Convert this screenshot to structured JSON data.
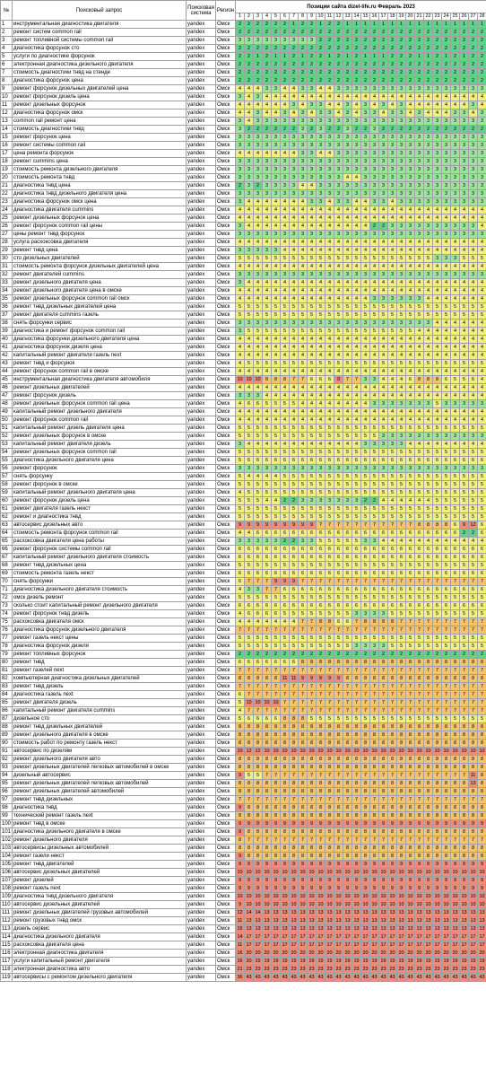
{
  "header": {
    "num": "№",
    "query": "Поисковый запрос",
    "engine": "Поисковая система",
    "region": "Регион",
    "title": "Позиции сайта dizel-life.ru Февраль 2023",
    "days": [
      "1",
      "2",
      "3",
      "4",
      "5",
      "6",
      "7",
      "8",
      "9",
      "10",
      "11",
      "12",
      "13",
      "14",
      "15",
      "16",
      "17",
      "18",
      "19",
      "20",
      "21",
      "22",
      "23",
      "24",
      "25",
      "26",
      "27",
      "28"
    ]
  },
  "engine": "yandex",
  "region": "Омск",
  "colors": {
    "green": "#5fd38a",
    "light_green": "#9be59b",
    "yellow": "#f2f07d",
    "orange": "#f4c36a",
    "red": "#f08a7a"
  },
  "rows": [
    {
      "q": "инструментальная диагностика двигателя",
      "p": "2 2 2 2 2 2 1 2 2 1 2 2 1 1 1 1 1 1 1 1 1 1 1 1 1 1 1 1"
    },
    {
      "q": "ремонт систем common rail",
      "p": "2 2 2 2 2 2 2 2 2 2 2 2 2 2 2 2 2 2 2 2 2 2 2 2 2 2 2 2"
    },
    {
      "q": "ремонт топливной системы common rail",
      "p": "3 3 3 3 3 3 3 3 3 2 2 2 2 2 2 2 2 2 2 2 2 2 2 2 2 2 2 2"
    },
    {
      "q": "диагностика форсунок сто",
      "p": "2 2 2 2 2 2 2 2 2 2 2 2 2 2 2 2 2 2 2 2 2 2 2 2 2 2 2 2"
    },
    {
      "q": "услуги по диагностике форсунок",
      "p": "2 2 1 2 1 1 2 1 2 2 1 2 1 2 1 1 1 2 2 2 1 1 2 1 2 1 2 2"
    },
    {
      "q": "электронная диагностика дизельного двигателя",
      "p": "2 2 2 2 2 2 2 2 2 2 2 2 2 2 2 2 2 2 2 2 2 2 2 2 2 2 2 2"
    },
    {
      "q": "стоимость диагностики тнвд на стенде",
      "p": "2 2 2 2 2 2 2 2 2 2 2 2 2 2 2 2 2 2 2 2 2 2 2 2 2 2 2 2"
    },
    {
      "q": "диагностика форсунок цена",
      "p": "2 2 2 2 2 2 2 2 2 2 2 2 2 2 2 2 2 2 2 2 2 2 2 2 2 2 2 2"
    },
    {
      "q": "ремонт форсунок дизельных двигателей цена",
      "p": "4 4 4 3 3 4 4 3 3 4 4 3 3 3 3 3 3 3 3 3 3 3 3 3 3 3 3 3"
    },
    {
      "q": "ремонт форсунок дизель цена",
      "p": "3 4 3 4 4 4 4 4 4 4 4 4 4 4 4 4 4 4 4 4 4 4 4 4 4 4 4 4"
    },
    {
      "q": "ремонт дизельных форсунок",
      "p": "4 4 4 4 4 4 3 4 3 3 4 4 3 4 3 4 3 4 3 4 4 4 4 4 4 4 3 4"
    },
    {
      "q": "диагностика форсунок омск",
      "p": "4 4 3 4 4 3 4 3 4 3 3 4 3 4 3 3 4 3 3 4 3 4 4 4 3 3 4 3"
    },
    {
      "q": "common rail ремонт цена",
      "p": "3 4 3 3 3 3 3 3 3 3 3 3 3 3 3 3 3 3 3 3 3 3 3 3 3 3 3 3"
    },
    {
      "q": "стоимость диагностики тнвд",
      "p": "3 2 2 2 2 2 2 3 2 3 2 2 3 2 2 3 2 2 2 2 2 2 2 2 2 2 2 2"
    },
    {
      "q": "ремонт форсунок цена",
      "p": "3 3 3 3 3 3 3 3 3 3 3 3 3 3 3 3 3 3 3 3 3 3 3 3 3 3 3 3"
    },
    {
      "q": "ремонт системы common rail",
      "p": "3 3 3 3 3 3 3 3 3 3 3 3 3 3 3 3 3 3 3 3 3 3 3 3 3 3 3 3"
    },
    {
      "q": "цена ремонта форсунок",
      "p": "4 4 4 4 4 4 4 3 3 4 4 3 3 3 3 3 3 3 3 3 3 3 3 3 3 3 3 3"
    },
    {
      "q": "ремонт cummins цена",
      "p": "3 3 3 3 3 3 3 3 3 3 3 3 3 3 3 3 3 3 3 3 3 3 3 3 3 3 3 3"
    },
    {
      "q": "стоимость ремонта дизельного двигателя",
      "p": "3 3 3 3 3 3 3 3 3 3 3 3 3 3 3 3 3 3 3 3 3 3 3 3 3 3 3 3"
    },
    {
      "q": "стоимость ремонта тнвд",
      "p": "3 3 3 3 3 3 3 3 3 3 3 3 4 4 3 3 3 3 3 3 3 3 3 3 3 3 3 3"
    },
    {
      "q": "диагностика тнвд цена",
      "p": "2 3 2 3 3 3 3 4 4 3 3 3 3 3 3 3 3 3 3 3 3 3 3 3 3 3 3 3"
    },
    {
      "q": "диагностика тнвд дизельного двигателя цена",
      "p": "3 3 3 3 3 3 3 3 3 3 3 3 3 3 3 3 3 3 3 3 3 3 3 3 3 3 3 3"
    },
    {
      "q": "диагностика форсунок омск цена",
      "p": "3 4 4 4 4 4 4 4 3 3 4 3 3 4 4 3 3 4 3 3 3 3 3 3 3 3 3 3"
    },
    {
      "q": "диагностика двигателя cummins",
      "p": "4 4 4 4 4 4 4 4 4 4 4 4 4 4 4 4 4 4 4 4 4 4 4 4 4 4 4 4"
    },
    {
      "q": "ремонт дизельных форсунок цена",
      "p": "4 4 4 4 4 4 4 4 4 4 4 4 4 4 4 4 4 4 4 4 4 4 4 4 4 4 4 4"
    },
    {
      "q": "ремонт форсунок common rail цены",
      "p": "3 4 4 4 4 4 4 4 4 4 4 4 4 4 4 2 2 3 3 3 3 3 3 3 3 3 3 4"
    },
    {
      "q": "цены ремонт тнвд форсунок",
      "p": "3 3 3 3 3 3 3 3 3 3 3 3 3 3 3 3 3 3 3 3 3 3 3 3 3 3 3 3"
    },
    {
      "q": "услуга расхоксовка двигателя",
      "p": "4 4 4 4 4 4 4 4 4 4 4 4 4 4 4 4 4 4 4 4 4 4 4 4 4 4 4 4"
    },
    {
      "q": "ремонт тнвд цена",
      "p": "3 3 3 3 3 4 4 4 4 4 4 4 4 4 4 4 4 4 4 4 4 4 4 4 4 4 4 4"
    },
    {
      "q": "сто дизельных двигателей",
      "p": "5 5 5 5 5 5 5 5 5 5 5 5 5 5 5 5 5 5 5 5 5 5 3 3 3 5 5 5"
    },
    {
      "q": "стоимость ремонта форсунок дизельных двигателей цена",
      "p": "4 4 4 4 4 4 4 4 4 4 4 4 4 4 4 4 4 4 4 4 4 4 4 4 4 4 4 4"
    },
    {
      "q": "ремонт двигателей cummins",
      "p": "3 3 3 3 3 3 3 3 3 3 3 3 3 3 3 3 3 3 3 3 3 3 3 3 3 3 3 3"
    },
    {
      "q": "ремонт дизельного двигателя цена",
      "p": "3 4 4 4 4 4 4 4 4 4 4 4 4 4 4 4 4 4 4 4 4 4 4 4 4 4 4 4"
    },
    {
      "q": "ремонт дизельного двигателя цена в омске",
      "p": "4 4 4 4 4 4 4 4 4 4 4 4 4 4 4 4 4 4 4 4 4 4 4 4 4 4 4 4"
    },
    {
      "q": "ремонт дизельных форсунок common rail омск",
      "p": "4 4 4 4 4 4 4 4 4 4 4 4 4 4 4 3 3 3 3 3 3 4 4 4 4 4 4 4"
    },
    {
      "q": "ремонт тнвд дизельных двигателей цена",
      "p": "5 5 5 5 5 5 5 5 5 5 5 5 5 5 5 5 5 5 5 5 5 5 5 5 5 5 5 5"
    },
    {
      "q": "ремонт двигателя cummins газель",
      "p": "5 5 5 5 5 5 5 5 5 5 5 5 5 5 5 5 5 5 5 5 5 5 5 5 5 5 5 5"
    },
    {
      "q": "снять форсунки сервис",
      "p": "3 3 3 3 3 3 3 3 3 3 3 3 3 3 3 3 3 3 3 3 3 3 4 4 4 4 4 4"
    },
    {
      "q": "диагностика и ремонт форсунок common rail",
      "p": "3 5 5 5 5 5 5 5 5 5 5 5 5 5 5 5 5 5 5 5 4 4 4 4 4 4 4 4"
    },
    {
      "q": "диагностика форсунки дизельного двигателя цена",
      "p": "4 4 4 4 4 4 4 4 4 4 4 4 4 4 4 4 4 4 4 4 4 4 4 4 4 4 4 4"
    },
    {
      "q": "диагностика форсунок дизеля цена",
      "p": "4 4 4 4 4 4 4 4 4 4 4 4 4 4 4 4 4 4 4 4 4 4 4 4 4 4 4 4"
    },
    {
      "q": "капитальный ремонт двигателя газель next",
      "p": "4 4 4 4 4 4 4 4 4 4 4 4 4 4 4 4 4 4 4 4 4 4 4 4 4 4 4 4"
    },
    {
      "q": "ремонт тнвд и форсунок",
      "p": "4 5 5 5 5 5 5 5 5 5 5 5 5 5 5 5 5 5 5 5 5 5 5 5 5 5 5 5"
    },
    {
      "q": "ремонт форсунок common rail в омске",
      "p": "4 4 4 4 4 4 4 4 4 4 4 4 4 4 4 4 4 4 4 4 4 4 4 4 4 4 4 4"
    },
    {
      "q": "инструментальная диагностика двигателя автомобиля",
      "p": "10 10 10 8 8 8 7 7 6 6 6 9 7 7 3 3 4 4 4 6 8 8 8 6 5 5 6 4"
    },
    {
      "q": "ремонт дизельных двигателей",
      "p": "4 4 4 4 4 4 4 4 4 4 4 4 4 4 4 4 4 4 4 4 4 4 4 4 4 4 4 4"
    },
    {
      "q": "ремонт форсунок дизель",
      "p": "3 3 3 4 4 4 4 4 4 4 4 4 4 4 4 4 4 4 4 4 4 4 4 4 4 4 4 4"
    },
    {
      "q": "ремонт дизельных форсунок common rail цена",
      "p": "4 6 6 5 5 5 5 4 4 4 4 4 4 4 4 3 3 3 3 3 3 3 5 3 3 3 3 3"
    },
    {
      "q": "капитальный ремонт дизельного двигателя",
      "p": "4 4 4 4 4 4 4 4 4 4 4 4 4 4 4 4 4 4 4 4 4 4 4 4 4 4 4 4"
    },
    {
      "q": "ремонт форсунок common rail",
      "p": "4 4 4 4 4 4 4 4 4 4 4 4 4 4 4 4 4 4 4 4 4 4 4 4 4 4 4 4"
    },
    {
      "q": "капитальный ремонт дизель двигателя цена",
      "p": "5 5 5 5 5 5 5 5 5 5 5 5 5 5 5 5 5 5 5 5 5 5 5 5 5 5 5 5"
    },
    {
      "q": "ремонт дизельных форсунок в омске",
      "p": "5 5 5 5 5 5 5 5 5 5 5 5 5 5 5 5 3 3 3 3 3 3 3 3 3 3 3 3"
    },
    {
      "q": "капитальный ремонт двигателя дизель",
      "p": "3 4 4 4 4 4 4 4 4 4 4 4 4 4 3 3 3 3 3 4 4 4 4 4 4 4 4 4"
    },
    {
      "q": "ремонт дизельных форсунок common rail",
      "p": "5 5 5 5 5 5 5 5 5 5 5 5 5 5 5 5 5 5 5 5 5 5 5 5 5 5 5 5"
    },
    {
      "q": "диагностика дизельного двигателя цена",
      "p": "5 6 6 6 6 6 6 6 6 6 6 6 6 6 6 6 6 6 6 6 6 6 6 6 6 6 6 6"
    },
    {
      "q": "ремонт форсунок",
      "p": "3 3 3 3 3 3 3 3 3 3 3 3 3 3 3 3 3 3 3 3 3 3 3 3 3 3 3 3"
    },
    {
      "q": "снять форсунку",
      "p": "5 4 4 4 4 5 5 5 5 5 5 5 5 5 5 5 5 5 5 5 5 5 5 5 5 5 5 5"
    },
    {
      "q": "ремонт форсунок в омске",
      "p": "5 5 5 5 5 5 5 5 5 5 5 5 5 5 5 5 5 5 5 5 5 5 5 5 5 5 5 5"
    },
    {
      "q": "капитальный ремонт дизельного двигателя цена",
      "p": "4 5 5 5 5 5 5 5 5 5 5 5 5 5 5 5 5 5 5 5 5 5 5 5 5 5 5 5"
    },
    {
      "q": "ремонт форсунок дизель цена",
      "p": "5 5 5 4 4 2 2 3 3 3 3 3 3 3 2 2 4 4 4 4 4 4 5 5 5 5 5 5"
    },
    {
      "q": "ремонт двигателя газель некст",
      "p": "5 5 5 5 5 5 5 5 5 5 5 5 5 5 5 5 5 5 5 5 5 5 5 5 5 5 5 5"
    },
    {
      "q": "ремонт и диагностика тнвд",
      "p": "5 5 5 5 5 5 5 5 5 5 5 5 5 5 5 5 5 5 5 5 5 5 5 5 5 5 5 5"
    },
    {
      "q": "автосервис дизельных авто",
      "p": "9 9 9 9 9 9 9 9 9 7 7 7 7 7 7 7 7 7 7 7 8 8 8 8 6 9 12 6"
    },
    {
      "q": "стоимость ремонта форсунок common rail",
      "p": "4 4 6 6 6 6 6 6 6 6 6 6 6 6 6 6 6 6 6 6 6 6 6 6 6 2 2 6"
    },
    {
      "q": "расхоксовка двигателя цена работы",
      "p": "3 3 3 3 3 2 2 3 3 5 5 5 5 5 3 3 4 4 4 4 4 4 4 4 4 4 4 4"
    },
    {
      "q": "ремонт форсунок системы common rail",
      "p": "6 6 6 6 6 6 6 6 6 6 6 6 6 6 6 6 6 6 6 6 6 6 6 6 6 6 6 6"
    },
    {
      "q": "капитальный ремонт дизельного двигателя стоимость",
      "p": "6 6 6 6 6 6 6 6 6 6 6 6 6 6 6 6 6 6 6 6 6 6 6 6 6 6 6 6"
    },
    {
      "q": "ремонт тнвд дизельных цена",
      "p": "5 5 5 5 5 5 5 5 5 5 5 5 5 5 5 5 5 5 5 5 5 5 5 5 5 5 5 5"
    },
    {
      "q": "стоимость ремонта газель некст",
      "p": "6 6 6 6 6 6 6 6 6 6 6 6 6 6 6 6 6 6 6 6 6 6 6 6 6 6 6 6"
    },
    {
      "q": "снять форсунки",
      "p": "6 7 7 7 9 9 9 7 7 7 7 7 7 7 7 7 7 7 7 7 7 7 7 7 7 7 7 7"
    },
    {
      "q": "диагностика дизельного двигателя стоимость",
      "p": "4 3 3 7 7 6 6 6 6 6 6 6 6 6 6 6 6 6 6 6 6 6 6 6 6 6 6 6"
    },
    {
      "q": "омск дизель ремонт",
      "p": "5 5 5 5 5 5 5 5 5 5 5 5 5 5 5 5 5 5 5 5 5 5 5 5 5 5 5 5"
    },
    {
      "q": "сколько стоит капитальный ремонт дизельного двигателя",
      "p": "6 6 6 6 6 6 6 6 6 6 6 6 6 6 6 6 6 6 6 6 6 6 6 6 6 6 6 6"
    },
    {
      "q": "ремонт форсунок тнвд дизель",
      "p": "4 6 6 6 6 5 5 5 5 5 5 5 5 3 3 3 3 5 5 5 5 5 5 5 5 5 5 5"
    },
    {
      "q": "расхоксовка двигателя омск",
      "p": "4 4 4 4 4 4 4 7 7 8 8 6 6 7 8 8 8 8 7 7 7 7 7 7 7 7 7 7"
    },
    {
      "q": "диагностика форсунок дизельного двигателя",
      "p": "7 7 7 7 7 7 7 7 7 7 7 7 7 7 7 7 7 7 7 7 7 7 7 7 7 7 7 7"
    },
    {
      "q": "ремонт газель некст цены",
      "p": "5 5 5 5 5 5 5 5 5 5 5 5 5 5 5 5 5 5 5 5 5 5 5 5 5 5 5 5"
    },
    {
      "q": "диагностика форсунок дизеля",
      "p": "5 5 5 5 5 5 5 5 5 5 5 5 5 3 3 3 3 5 5 5 5 5 5 5 5 5 5 5"
    },
    {
      "q": "ремонт топливных форсунок",
      "p": "2 2 2 2 2 2 2 2 2 2 2 2 2 2 2 2 2 2 2 2 2 2 2 2 2 2 2 2"
    },
    {
      "q": "ремонт тнвд",
      "p": "6 6 6 6 6 6 6 8 8 8 8 8 8 8 8 8 8 8 8 8 8 8 8 8 8 8 8 8"
    },
    {
      "q": "ремонт газелей next",
      "p": "7 7 7 7 7 7 7 7 7 7 7 7 7 7 7 7 7 7 7 7 7 7 7 7 7 7 7 7"
    },
    {
      "q": "компьютерная диагностика дизельных двигателей",
      "p": "8 8 8 8 8 11 11 9 9 9 9 9 8 8 8 8 8 8 8 8 8 8 8 8 8 8 8 8"
    },
    {
      "q": "ремонт тнвд дизель",
      "p": "7 7 7 7 7 7 7 7 7 7 7 7 7 7 7 7 7 7 7 7 7 7 7 7 7 7 7 7"
    },
    {
      "q": "диагностика газель next",
      "p": "6 7 7 7 7 7 7 7 7 7 7 7 7 7 7 7 7 7 7 7 7 7 7 7 7 7 7 7"
    },
    {
      "q": "ремонт двигателя дизель",
      "p": "5 10 10 10 10 7 7 7 7 7 7 7 7 7 7 7 7 7 7 7 7 7 7 7 7 7 7 7"
    },
    {
      "q": "капитальный ремонт двигателя cummins",
      "p": "4 7 7 7 7 7 7 7 7 7 7 7 7 7 7 7 7 7 7 7 7 7 7 7 7 7 7 7"
    },
    {
      "q": "дизельное сто",
      "p": "5 6 6 6 6 8 8 8 5 5 5 5 5 5 5 5 5 5 5 5 5 5 5 5 5 5 5 5"
    },
    {
      "q": "ремонт тнвд дизельных двигателей",
      "p": "8 8 8 8 8 8 8 8 8 8 8 8 8 8 8 8 8 8 8 8 8 8 8 8 8 8 8 8"
    },
    {
      "q": "ремонт дизельного двигателя в омске",
      "p": "8 8 8 8 8 8 8 8 8 8 8 8 8 8 8 8 8 8 8 8 8 8 8 8 8 8 8 8"
    },
    {
      "q": "стоимость работ по ремонту газель некст",
      "p": "8 8 8 8 8 8 8 8 8 8 8 8 8 8 8 8 8 8 8 8 8 8 8 8 8 8 8 8"
    },
    {
      "q": "автосервис по дизелям",
      "p": "10 12 12 10 10 10 10 10 10 10 10 10 10 10 10 10 10 10 10 10 10 10 10 10 10 10 10 10"
    },
    {
      "q": "ремонт дизельного двигателя авто",
      "p": "8 8 8 8 8 8 8 8 8 8 8 8 8 8 8 8 8 8 8 8 8 8 8 8 8 8 8 8"
    },
    {
      "q": "ремонт дизельных двигателей легковых автомобилей в омске",
      "p": "8 8 8 8 8 8 8 8 8 8 8 8 8 8 8 8 8 8 8 8 8 8 8 8 8 8 8 8"
    },
    {
      "q": "дизельный автосервис",
      "p": "9 5 5 7 7 7 7 7 7 7 7 7 7 7 7 7 7 7 7 7 7 7 7 7 7 7 11 8"
    },
    {
      "q": "ремонт дизельных двигателей легковых автомобилей",
      "p": "8 8 8 8 8 8 8 8 8 8 8 8 8 8 8 8 8 8 8 8 8 8 8 8 8 8 13 8"
    },
    {
      "q": "ремонт дизельных двигателей автомобилей",
      "p": "8 8 8 8 8 8 8 8 8 8 8 8 8 8 8 8 8 8 8 8 8 8 8 8 8 8 8 8"
    },
    {
      "q": "ремонт тнвд дизельных",
      "p": "7 7 7 7 7 7 7 7 7 7 7 7 7 7 7 7 7 7 7 7 7 7 7 7 7 7 7 7"
    },
    {
      "q": "диагностика тнвд",
      "p": "9 8 8 8 8 8 8 8 8 8 8 8 8 8 8 8 8 8 8 8 8 8 8 8 8 8 8 8"
    },
    {
      "q": "технический ремонт газель next",
      "p": "8 8 8 8 8 8 8 8 8 8 8 8 8 8 8 8 8 8 8 8 8 8 8 8 8 8 8 8"
    },
    {
      "q": "ремонт тнвд в омске",
      "p": "9 9 9 9 9 9 9 9 9 9 9 9 9 9 9 9 9 9 9 9 9 9 9 9 9 9 9 9"
    },
    {
      "q": "диагностика дизельного двигателя в омске",
      "p": "9 8 8 8 8 8 8 8 8 8 8 8 8 8 8 8 8 8 8 8 8 8 8 8 8 8 8 8"
    },
    {
      "q": "ремонт дизельного двигателя",
      "p": "8 7 7 7 7 7 7 7 7 7 7 7 7 7 7 7 7 7 7 7 7 7 7 7 7 7 7 7"
    },
    {
      "q": "автосервисы дизельных автомобилей",
      "p": "8 8 8 8 8 8 8 8 8 8 8 8 8 8 8 8 8 8 8 8 8 8 8 8 8 8 8 8"
    },
    {
      "q": "ремонт газели некст",
      "p": "9 8 8 8 8 8 8 8 8 8 8 8 8 8 8 8 8 8 8 8 8 8 8 8 8 8 8 8"
    },
    {
      "q": "ремонт тнвд двигателей",
      "p": "9 9 9 9 9 9 9 9 9 9 9 9 9 9 9 9 9 9 9 9 9 9 9 9 9 9 9 9"
    },
    {
      "q": "автосервис дизельных двигателей",
      "p": "10 10 10 10 10 10 10 10 10 10 10 10 10 10 10 10 10 10 10 10 10 10 10 10 10 10 10 10"
    },
    {
      "q": "ремонт дизелей",
      "p": "9 9 9 9 9 9 9 9 9 9 9 9 9 9 9 9 9 9 9 9 9 9 9 9 9 9 9 9"
    },
    {
      "q": "ремонт газель next",
      "p": "9 9 9 9 9 9 9 9 9 9 9 9 9 9 9 9 9 9 9 9 9 9 9 9 9 9 9 9"
    },
    {
      "q": "диагностика тнвд дизельного двигателя",
      "p": "10 10 10 10 10 10 10 10 10 10 10 10 10 10 10 10 10 10 10 10 10 10 10 10 10 10 10 10"
    },
    {
      "q": "автосервис дизельных двигателей",
      "p": "9 10 10 10 10 10 10 10 10 10 10 10 10 10 10 10 10 10 10 10 10 10 10 10 10 10 10 10"
    },
    {
      "q": "ремонт дизельных двигателей грузовых автомобилей",
      "p": "12 14 14 13 13 13 13 13 13 13 13 13 13 13 13 13 13 13 13 13 13 13 13 13 13 13 13 13"
    },
    {
      "q": "ремонт грузовых тнвд омск",
      "p": "11 13 13 13 13 13 13 13 13 13 13 13 13 13 13 13 13 13 13 13 13 13 13 13 13 13 13 13"
    },
    {
      "q": "дизель сервис",
      "p": "15 13 13 13 13 13 13 13 13 13 13 13 13 13 13 13 13 13 13 13 13 13 13 13 13 13 13 13"
    },
    {
      "q": "диагностика дизельного двигателя",
      "p": "14 17 17 17 17 17 17 17 17 17 17 17 17 17 17 17 17 17 17 17 17 17 17 17 17 17 17 17"
    },
    {
      "q": "расхоксовка двигателя цена",
      "p": "11 17 17 17 17 17 17 17 17 17 17 17 17 17 17 17 17 17 17 17 17 17 17 17 17 17 17 17"
    },
    {
      "q": "электронная диагностика двигателя",
      "p": "16 20 20 20 20 20 20 20 20 20 20 20 20 20 20 20 20 20 20 20 20 20 20 20 20 20 20 20"
    },
    {
      "q": "услуги капитальный ремонт двигателя",
      "p": "16 20 19 19 19 19 19 19 19 19 19 19 19 19 19 19 19 19 19 19 19 19 19 19 19 19 19 19"
    },
    {
      "q": "электронная диагностика авто",
      "p": "21 23 23 23 23 23 23 23 23 23 23 23 23 23 23 23 23 23 23 23 23 23 23 23 23 23 23 23"
    },
    {
      "q": "автосервисы с ремонтом дизельного двигателя",
      "p": "36 43 43 43 43 43 43 43 43 43 43 43 43 43 43 43 43 43 43 43 43 43 43 43 43 43 43 43"
    }
  ]
}
